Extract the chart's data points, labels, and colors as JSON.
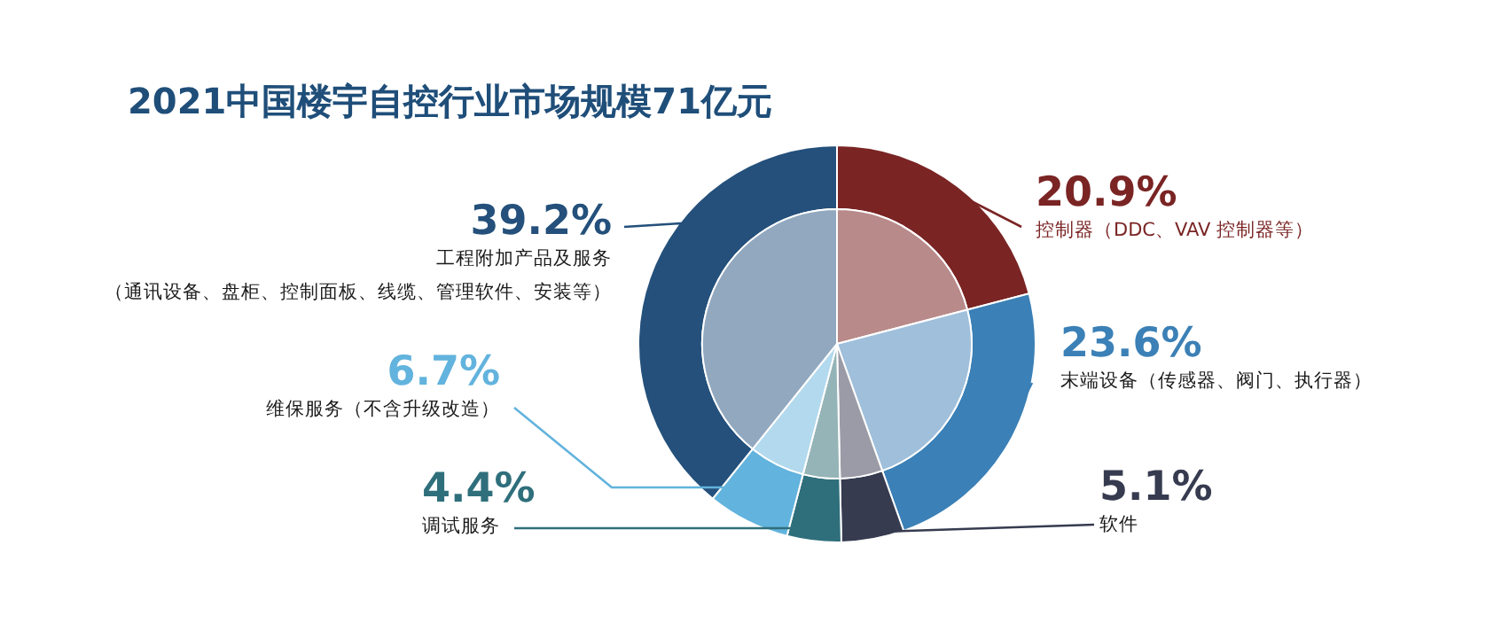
{
  "chart_data": {
    "type": "donut",
    "title": "2021中国楼宇自控行业市场规模71亿元",
    "categories": [
      "控制器（DDC、VAV 控制器等）",
      "末端设备（传感器、阀门、执行器）",
      "软件",
      "调试服务",
      "维保服务（不含升级改造）",
      "工程附加产品及服务（通讯设备、盘柜、控制面板、线缆、管理软件、安装等）"
    ],
    "value_labels": [
      "20.9%",
      "23.6%",
      "5.1%",
      "4.4%",
      "6.7%",
      "39.2%"
    ],
    "series": [
      {
        "values": [
          20.9,
          23.6,
          5.1,
          4.4,
          6.7,
          39.2
        ],
        "colors": [
          "#7a2424",
          "#3b80b6",
          "#363b50",
          "#2f6f7b",
          "#62b3dd",
          "#24507b"
        ]
      },
      {
        "values": [
          20.9,
          23.6,
          5.1,
          4.4,
          6.7,
          39.2
        ],
        "colors": [
          "#b98a8a",
          "#9fbfdb",
          "#9a9ba6",
          "#95b4b8",
          "#b2d9ee",
          "#91a8bf"
        ]
      }
    ]
  }
}
